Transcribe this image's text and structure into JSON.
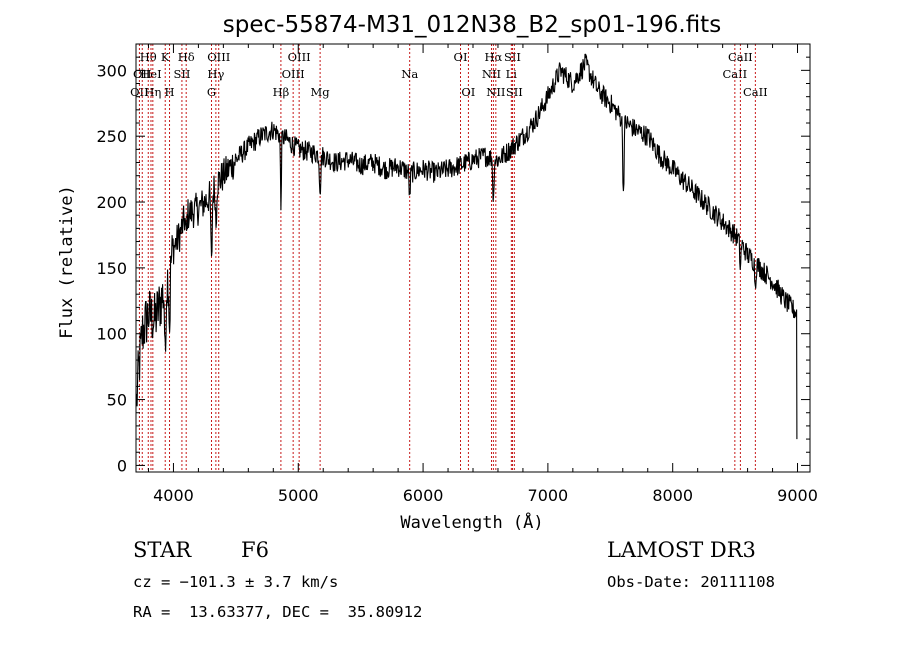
{
  "chart_data": {
    "type": "line",
    "title": "spec-55874-M31_012N38_B2_sp01-196.fits",
    "xlabel": "Wavelength (Å)",
    "ylabel": "Flux (relative)",
    "xlim": [
      3700,
      9100
    ],
    "ylim": [
      -5,
      320
    ],
    "xticks": [
      4000,
      5000,
      6000,
      7000,
      8000,
      9000
    ],
    "yticks": [
      0,
      50,
      100,
      150,
      200,
      250,
      300
    ],
    "spectrum_anchors": {
      "wavelength": [
        3700,
        3720,
        3750,
        3800,
        3850,
        3900,
        3950,
        4000,
        4050,
        4100,
        4200,
        4300,
        4350,
        4400,
        4500,
        4600,
        4700,
        4800,
        4861,
        4900,
        5000,
        5100,
        5200,
        5300,
        5400,
        5500,
        5600,
        5700,
        5800,
        5900,
        6000,
        6100,
        6200,
        6300,
        6400,
        6500,
        6600,
        6700,
        6800,
        6900,
        7000,
        7100,
        7200,
        7300,
        7400,
        7500,
        7600,
        7700,
        7800,
        7900,
        8000,
        8100,
        8200,
        8300,
        8400,
        8500,
        8550,
        8600,
        8700,
        8800,
        8900,
        9000
      ],
      "flux": [
        40,
        70,
        100,
        115,
        110,
        125,
        140,
        165,
        175,
        190,
        195,
        205,
        215,
        220,
        232,
        242,
        250,
        255,
        250,
        248,
        240,
        238,
        235,
        230,
        232,
        228,
        230,
        225,
        227,
        222,
        225,
        222,
        225,
        228,
        232,
        235,
        232,
        240,
        250,
        262,
        280,
        300,
        290,
        305,
        285,
        275,
        262,
        255,
        250,
        235,
        225,
        215,
        205,
        195,
        185,
        175,
        168,
        160,
        150,
        140,
        125,
        115
      ]
    },
    "absorption_features": [
      {
        "wavelength": 3934,
        "depth": 60,
        "width": 6
      },
      {
        "wavelength": 3969,
        "depth": 45,
        "width": 6
      },
      {
        "wavelength": 4102,
        "depth": 18,
        "width": 6
      },
      {
        "wavelength": 4305,
        "depth": 55,
        "width": 7
      },
      {
        "wavelength": 4341,
        "depth": 30,
        "width": 6
      },
      {
        "wavelength": 4861,
        "depth": 55,
        "width": 5
      },
      {
        "wavelength": 5175,
        "depth": 25,
        "width": 8
      },
      {
        "wavelength": 5893,
        "depth": 20,
        "width": 6
      },
      {
        "wavelength": 6563,
        "depth": 35,
        "width": 6
      },
      {
        "wavelength": 7605,
        "depth": 55,
        "width": 7
      },
      {
        "wavelength": 8542,
        "depth": 20,
        "width": 6
      },
      {
        "wavelength": 8662,
        "depth": 18,
        "width": 6
      }
    ],
    "line_markers": [
      {
        "wavelength": 3727,
        "label": "OII",
        "row": 2
      },
      {
        "wavelength": 3750,
        "label": "OII",
        "row": 1
      },
      {
        "wavelength": 3798,
        "label": "Hθ",
        "row": 0
      },
      {
        "wavelength": 3820,
        "label": "HeI",
        "row": 1
      },
      {
        "wavelength": 3835,
        "label": "Hη",
        "row": 2
      },
      {
        "wavelength": 3934,
        "label": "K",
        "row": 0
      },
      {
        "wavelength": 3969,
        "label": "H",
        "row": 2
      },
      {
        "wavelength": 4068,
        "label": "SII",
        "row": 1
      },
      {
        "wavelength": 4102,
        "label": "Hδ",
        "row": 0
      },
      {
        "wavelength": 4305,
        "label": "G",
        "row": 2
      },
      {
        "wavelength": 4340,
        "label": "Hγ",
        "row": 1
      },
      {
        "wavelength": 4363,
        "label": "OIII",
        "row": 0
      },
      {
        "wavelength": 4861,
        "label": "Hβ",
        "row": 2
      },
      {
        "wavelength": 4959,
        "label": "OIII",
        "row": 1
      },
      {
        "wavelength": 5007,
        "label": "OIII",
        "row": 0
      },
      {
        "wavelength": 5175,
        "label": "Mg",
        "row": 2
      },
      {
        "wavelength": 5893,
        "label": "Na",
        "row": 1
      },
      {
        "wavelength": 6300,
        "label": "OI",
        "row": 0
      },
      {
        "wavelength": 6363,
        "label": "OI",
        "row": 2
      },
      {
        "wavelength": 6548,
        "label": "NII",
        "row": 1
      },
      {
        "wavelength": 6563,
        "label": "Hα",
        "row": 0
      },
      {
        "wavelength": 6583,
        "label": "NII",
        "row": 2
      },
      {
        "wavelength": 6707,
        "label": "Li",
        "row": 1
      },
      {
        "wavelength": 6716,
        "label": "SII",
        "row": 0
      },
      {
        "wavelength": 6731,
        "label": "SII",
        "row": 2
      },
      {
        "wavelength": 8498,
        "label": "CaII",
        "row": 1
      },
      {
        "wavelength": 8542,
        "label": "CaII",
        "row": 0
      },
      {
        "wavelength": 8662,
        "label": "CaII",
        "row": 2
      }
    ]
  },
  "info": {
    "class": "STAR",
    "subclass": "F6",
    "survey": "LAMOST DR3",
    "cz": "cz = −101.3 ± 3.7 km/s",
    "obs_date": "Obs-Date: 20111108",
    "coords": "RA =  13.63377, DEC =  35.80912"
  }
}
